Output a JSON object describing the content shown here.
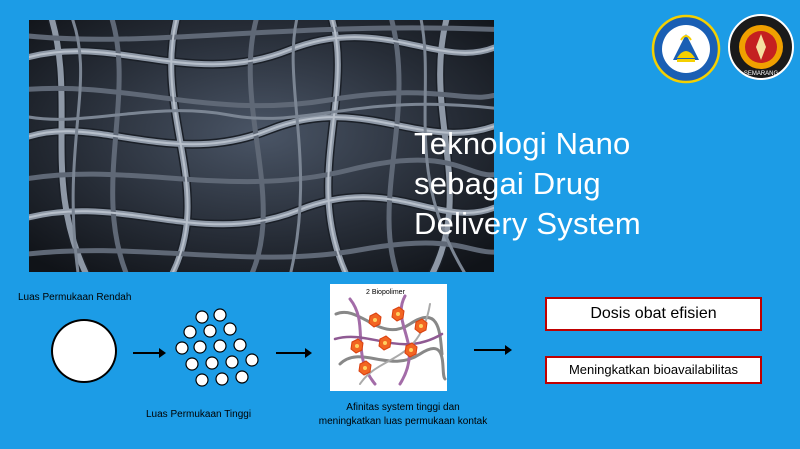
{
  "slide": {
    "title_lines": [
      "Teknologi Nano",
      "sebagai Drug",
      "Delivery System"
    ],
    "hero_image": "nanofiber-mesh-image",
    "logos": [
      "tut-wuri-handayani-logo",
      "universitas-diponegoro-logo"
    ],
    "logo2_text": "SEMARANG"
  },
  "diagram": {
    "low_surface_label": "Luas Permukaan Rendah",
    "high_surface_label": "Luas Permukaan Tinggi",
    "biopolymer_label": "2 Biopolimer",
    "affinity_label_line1": "Afinitas system tinggi dan",
    "affinity_label_line2": "meningkatkan luas permukaan kontak"
  },
  "outcomes": {
    "box1": "Dosis obat efisien",
    "box2": "Meningkatkan bioavailabilitas"
  },
  "colors": {
    "background": "#1c9ce6",
    "box_border": "#c00000",
    "title": "#ffffff"
  }
}
